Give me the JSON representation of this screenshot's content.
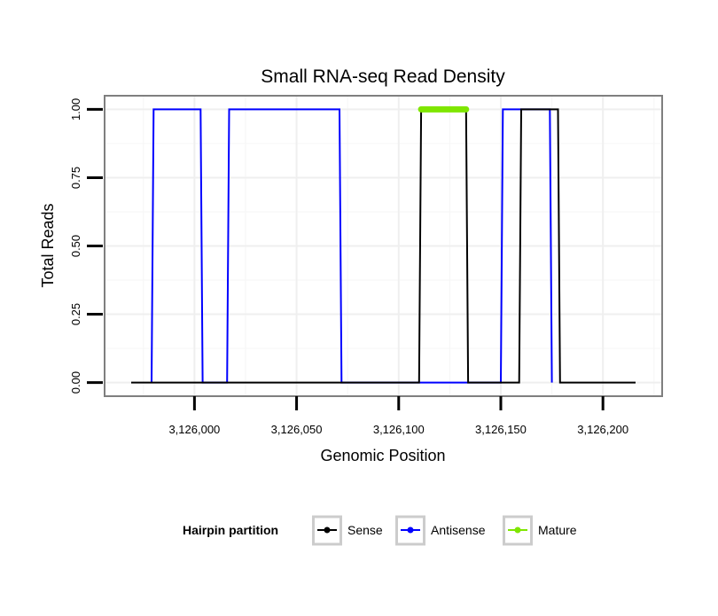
{
  "chart_data": {
    "type": "line",
    "title": "Small RNA-seq Read Density",
    "xlabel": "Genomic Position",
    "ylabel": "Total Reads",
    "xlim": [
      3125956,
      3126229
    ],
    "ylim": [
      -0.05,
      1.05
    ],
    "x_ticks": [
      3126000,
      3126050,
      3126100,
      3126150,
      3126200
    ],
    "x_tick_labels": [
      "3,126,000",
      "3,126,050",
      "3,126,100",
      "3,126,150",
      "3,126,200"
    ],
    "y_ticks": [
      0,
      0.25,
      0.5,
      0.75,
      1
    ],
    "y_tick_labels": [
      "0.00",
      "0.25",
      "0.50",
      "0.75",
      "1.00"
    ],
    "grid": true,
    "legend": {
      "title": "Hairpin partition",
      "placement": "bottom",
      "entries": [
        "Sense",
        "Antisense",
        "Mature"
      ]
    },
    "series": [
      {
        "name": "Sense",
        "color": "#000000",
        "x": [
          3125969,
          3126110,
          3126111,
          3126133,
          3126134,
          3126159,
          3126160,
          3126178,
          3126179,
          3126216
        ],
        "values": [
          0,
          0,
          1,
          1,
          0,
          0,
          1,
          1,
          0,
          0
        ]
      },
      {
        "name": "Antisense",
        "color": "#0000ff",
        "x": [
          3125979,
          3125980,
          3126003,
          3126004,
          3126016,
          3126017,
          3126071,
          3126072,
          3126150,
          3126151,
          3126174,
          3126175
        ],
        "values": [
          0,
          1,
          1,
          0,
          0,
          1,
          1,
          0,
          0,
          1,
          1,
          0
        ]
      },
      {
        "name": "Mature",
        "color": "#7fe600",
        "x": [
          3126111,
          3126133
        ],
        "values": [
          1,
          1
        ]
      }
    ]
  }
}
